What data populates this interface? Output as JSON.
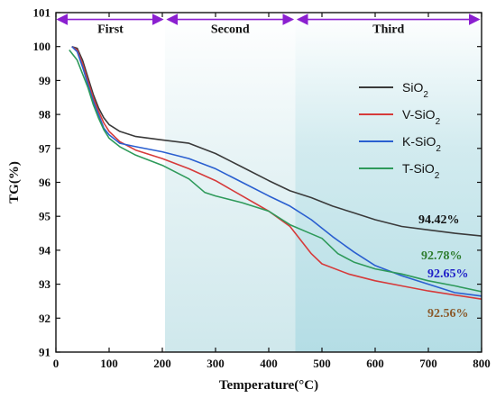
{
  "chart_data": {
    "type": "line",
    "xlabel": "Temperature(°C)",
    "ylabel": "TG(%)",
    "xlim": [
      0,
      800
    ],
    "ylim": [
      91,
      101
    ],
    "xticks": [
      0,
      100,
      200,
      300,
      400,
      500,
      600,
      700,
      800
    ],
    "yticks": [
      91,
      92,
      93,
      94,
      95,
      96,
      97,
      98,
      99,
      100,
      101
    ],
    "legend_position": "upper right",
    "stages": [
      {
        "label": "First",
        "x_start": 0,
        "x_end": 205,
        "shade": "#ffffff"
      },
      {
        "label": "Second",
        "x_start": 205,
        "x_end": 450,
        "shade": "#d7ecef"
      },
      {
        "label": "Third",
        "x_start": 450,
        "x_end": 800,
        "shade": "#bfe3ea"
      }
    ],
    "series": [
      {
        "name": "SiO2",
        "color": "#3a3a3a",
        "end_label": "94.42%",
        "end_label_color": "#111111",
        "points": [
          [
            30,
            100
          ],
          [
            40,
            99.95
          ],
          [
            50,
            99.6
          ],
          [
            60,
            99.1
          ],
          [
            70,
            98.6
          ],
          [
            80,
            98.2
          ],
          [
            90,
            97.9
          ],
          [
            100,
            97.7
          ],
          [
            120,
            97.5
          ],
          [
            150,
            97.35
          ],
          [
            200,
            97.25
          ],
          [
            250,
            97.15
          ],
          [
            300,
            96.85
          ],
          [
            350,
            96.45
          ],
          [
            400,
            96.05
          ],
          [
            440,
            95.75
          ],
          [
            480,
            95.55
          ],
          [
            520,
            95.3
          ],
          [
            560,
            95.1
          ],
          [
            600,
            94.9
          ],
          [
            650,
            94.7
          ],
          [
            700,
            94.6
          ],
          [
            750,
            94.5
          ],
          [
            800,
            94.42
          ]
        ]
      },
      {
        "name": "V-SiO2",
        "color": "#d63a3a",
        "end_label": "92.56%",
        "end_label_color": "#8b5a2b",
        "points": [
          [
            30,
            100
          ],
          [
            40,
            99.9
          ],
          [
            50,
            99.5
          ],
          [
            60,
            99
          ],
          [
            70,
            98.5
          ],
          [
            80,
            98.1
          ],
          [
            90,
            97.75
          ],
          [
            100,
            97.5
          ],
          [
            120,
            97.2
          ],
          [
            150,
            96.95
          ],
          [
            200,
            96.7
          ],
          [
            250,
            96.4
          ],
          [
            300,
            96.05
          ],
          [
            350,
            95.6
          ],
          [
            400,
            95.15
          ],
          [
            440,
            94.7
          ],
          [
            460,
            94.3
          ],
          [
            480,
            93.9
          ],
          [
            500,
            93.6
          ],
          [
            550,
            93.3
          ],
          [
            600,
            93.1
          ],
          [
            650,
            92.95
          ],
          [
            700,
            92.8
          ],
          [
            750,
            92.68
          ],
          [
            800,
            92.56
          ]
        ]
      },
      {
        "name": "K-SiO2",
        "color": "#2a5fd0",
        "end_label": "92.65%",
        "end_label_color": "#1f1fc8",
        "points": [
          [
            30,
            100
          ],
          [
            40,
            99.85
          ],
          [
            50,
            99.4
          ],
          [
            60,
            98.9
          ],
          [
            70,
            98.4
          ],
          [
            80,
            98
          ],
          [
            90,
            97.6
          ],
          [
            100,
            97.4
          ],
          [
            120,
            97.15
          ],
          [
            150,
            97.05
          ],
          [
            200,
            96.9
          ],
          [
            250,
            96.7
          ],
          [
            300,
            96.4
          ],
          [
            350,
            96
          ],
          [
            400,
            95.6
          ],
          [
            440,
            95.3
          ],
          [
            480,
            94.9
          ],
          [
            520,
            94.4
          ],
          [
            560,
            93.95
          ],
          [
            600,
            93.55
          ],
          [
            650,
            93.25
          ],
          [
            700,
            93
          ],
          [
            750,
            92.75
          ],
          [
            800,
            92.65
          ]
        ]
      },
      {
        "name": "T-SiO2",
        "color": "#2e9a5a",
        "end_label": "92.78%",
        "end_label_color": "#2e7d2e",
        "points": [
          [
            25,
            99.9
          ],
          [
            40,
            99.6
          ],
          [
            50,
            99.2
          ],
          [
            60,
            98.8
          ],
          [
            70,
            98.3
          ],
          [
            80,
            97.9
          ],
          [
            90,
            97.55
          ],
          [
            100,
            97.3
          ],
          [
            120,
            97.05
          ],
          [
            150,
            96.8
          ],
          [
            200,
            96.5
          ],
          [
            250,
            96.1
          ],
          [
            280,
            95.7
          ],
          [
            300,
            95.6
          ],
          [
            350,
            95.4
          ],
          [
            400,
            95.15
          ],
          [
            440,
            94.75
          ],
          [
            470,
            94.55
          ],
          [
            500,
            94.35
          ],
          [
            530,
            93.9
          ],
          [
            560,
            93.65
          ],
          [
            600,
            93.45
          ],
          [
            650,
            93.3
          ],
          [
            700,
            93.1
          ],
          [
            750,
            92.95
          ],
          [
            800,
            92.78
          ]
        ]
      }
    ]
  }
}
